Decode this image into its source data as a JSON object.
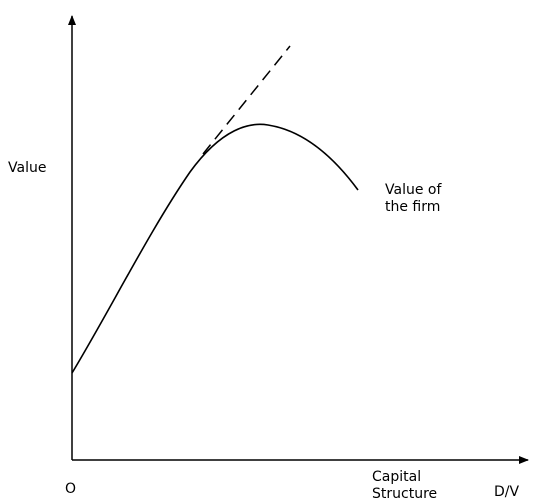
{
  "y_axis_label": "Value",
  "curve_label": [
    "Value of",
    "the firm"
  ],
  "origin_label": "O",
  "x_axis_label": [
    "Capital",
    "Structure"
  ],
  "x_axis_unit": "D/V"
}
